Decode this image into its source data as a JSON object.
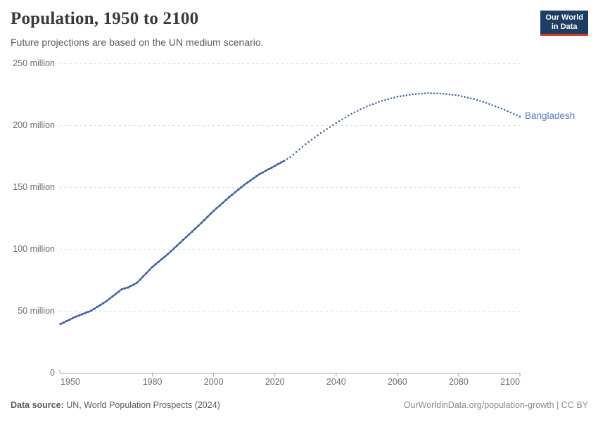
{
  "header": {
    "title": "Population, 1950 to 2100",
    "subtitle": "Future projections are based on the UN medium scenario.",
    "logo": {
      "line1": "Our World",
      "line2": "in Data",
      "bg_color": "#1d3d63",
      "stripe_color": "#d93a2b"
    }
  },
  "chart_data": {
    "type": "line",
    "title": "Population, 1950 to 2100",
    "entity_label": "Bangladesh",
    "unit": "people",
    "grid": true,
    "colors": {
      "line": "#44639f",
      "entity_label": "#5878be",
      "gridline": "#dcdcdc",
      "axis": "#a3a3a3",
      "tick_text": "#6e6e6e"
    },
    "x": {
      "range": [
        1950,
        2100
      ],
      "ticks": [
        1950,
        1980,
        2000,
        2020,
        2040,
        2060,
        2080,
        2100
      ]
    },
    "y": {
      "range": [
        0,
        250
      ],
      "tick_values": [
        0,
        50,
        100,
        150,
        200,
        250
      ],
      "tick_labels": [
        "0",
        "50 million",
        "100 million",
        "150 million",
        "200 million",
        "250 million"
      ]
    },
    "series": [
      {
        "name": "Bangladesh — historical estimates",
        "style": "solid-with-markers",
        "points": [
          [
            1950,
            39.7
          ],
          [
            1955,
            45.6
          ],
          [
            1960,
            50.4
          ],
          [
            1965,
            58.1
          ],
          [
            1970,
            67.8
          ],
          [
            1972,
            69.1
          ],
          [
            1975,
            73.0
          ],
          [
            1980,
            85.8
          ],
          [
            1985,
            96.0
          ],
          [
            1990,
            107.5
          ],
          [
            1995,
            119.0
          ],
          [
            2000,
            131.1
          ],
          [
            2005,
            142.0
          ],
          [
            2010,
            152.1
          ],
          [
            2015,
            160.8
          ],
          [
            2020,
            167.4
          ],
          [
            2023,
            171.5
          ]
        ]
      },
      {
        "name": "Bangladesh — UN medium projection",
        "style": "dotted",
        "points": [
          [
            2023,
            171.5
          ],
          [
            2025,
            174.5
          ],
          [
            2030,
            185.0
          ],
          [
            2035,
            194.0
          ],
          [
            2040,
            202.0
          ],
          [
            2045,
            209.5
          ],
          [
            2050,
            215.5
          ],
          [
            2055,
            220.0
          ],
          [
            2060,
            223.3
          ],
          [
            2065,
            225.3
          ],
          [
            2070,
            226.2
          ],
          [
            2075,
            225.8
          ],
          [
            2080,
            224.2
          ],
          [
            2085,
            221.5
          ],
          [
            2090,
            217.5
          ],
          [
            2095,
            212.7
          ],
          [
            2100,
            207.3
          ]
        ]
      }
    ]
  },
  "footer": {
    "source_bold": "Data source:",
    "source_rest": " UN, World Population Prospects (2024)",
    "right_text": "OurWorldinData.org/population-growth | CC BY"
  }
}
